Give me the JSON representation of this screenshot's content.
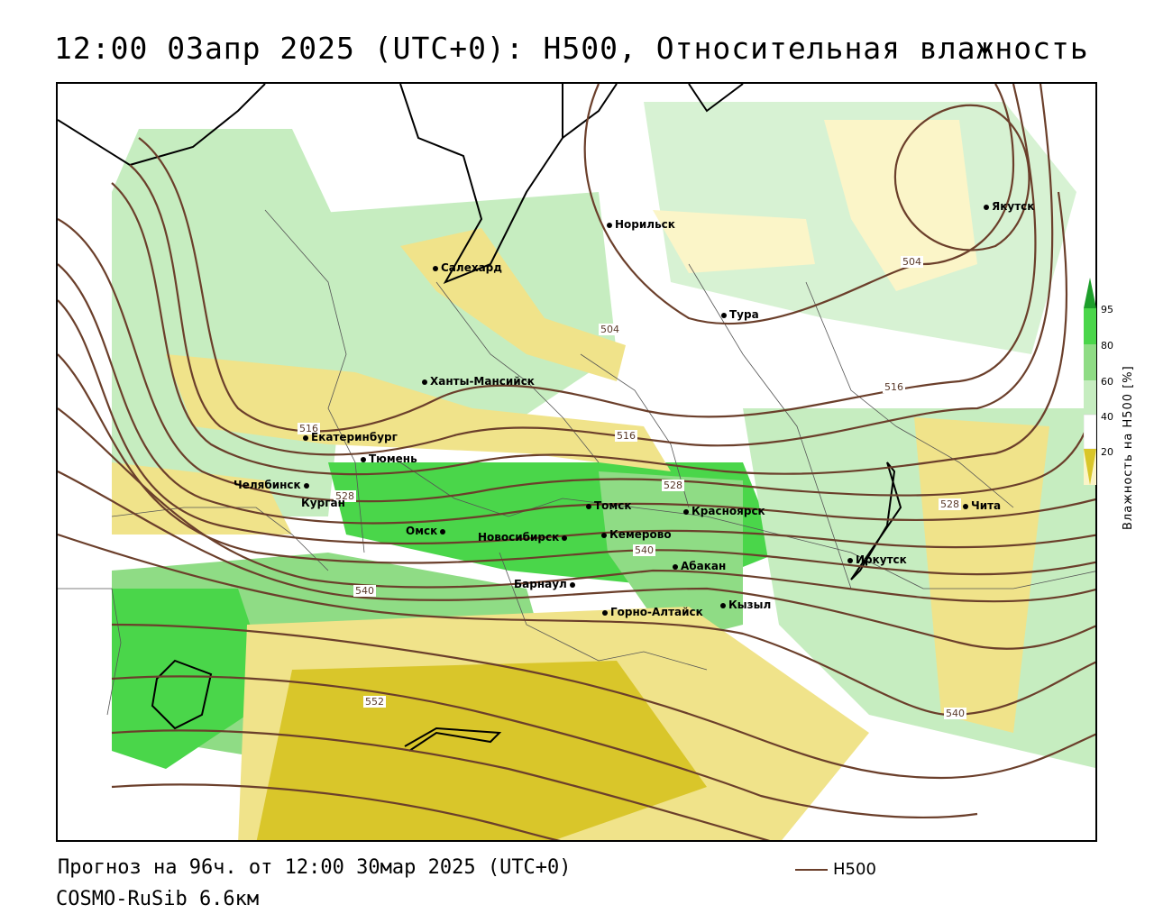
{
  "header": {
    "title": "12:00 03апр 2025 (UTC+0): H500, Относительная влажность"
  },
  "cities": [
    {
      "name": "Норильск"
    },
    {
      "name": "Якутск"
    },
    {
      "name": "Салехард"
    },
    {
      "name": "Тура"
    },
    {
      "name": "Ханты-Мансийск"
    },
    {
      "name": "Екатеринбург"
    },
    {
      "name": "Тюмень"
    },
    {
      "name": "Челябинск"
    },
    {
      "name": "Курган"
    },
    {
      "name": "Томск"
    },
    {
      "name": "Красноярск"
    },
    {
      "name": "Омск"
    },
    {
      "name": "Новосибирск"
    },
    {
      "name": "Кемерово"
    },
    {
      "name": "Абакан"
    },
    {
      "name": "Иркутск"
    },
    {
      "name": "Чита"
    },
    {
      "name": "Барнаул"
    },
    {
      "name": "Горно-Алтайск"
    },
    {
      "name": "Кызыл"
    }
  ],
  "contour_labels": [
    "504",
    "504",
    "516",
    "516",
    "516",
    "528",
    "528",
    "528",
    "540",
    "540",
    "540",
    "552"
  ],
  "colorbar": {
    "title": "Влажность на H500 [%]",
    "ticks": [
      "95",
      "80",
      "60",
      "40",
      "20"
    ],
    "colors": {
      "yellow_dark": "#d9c62a",
      "yellow": "#f0e38a",
      "yellow_light": "#fbf5c8",
      "white": "#ffffff",
      "green_light": "#c6edc0",
      "green": "#8fdc85",
      "green_bright": "#4ad64a",
      "green_dark": "#1d9e2a"
    }
  },
  "legend": {
    "line_label": "H500",
    "line_color": "#6b3f2b"
  },
  "footer": {
    "forecast": "Прогноз на 96ч. от 12:00 30мар 2025 (UTC+0)",
    "model": "COSMO-RuSib 6.6км"
  }
}
